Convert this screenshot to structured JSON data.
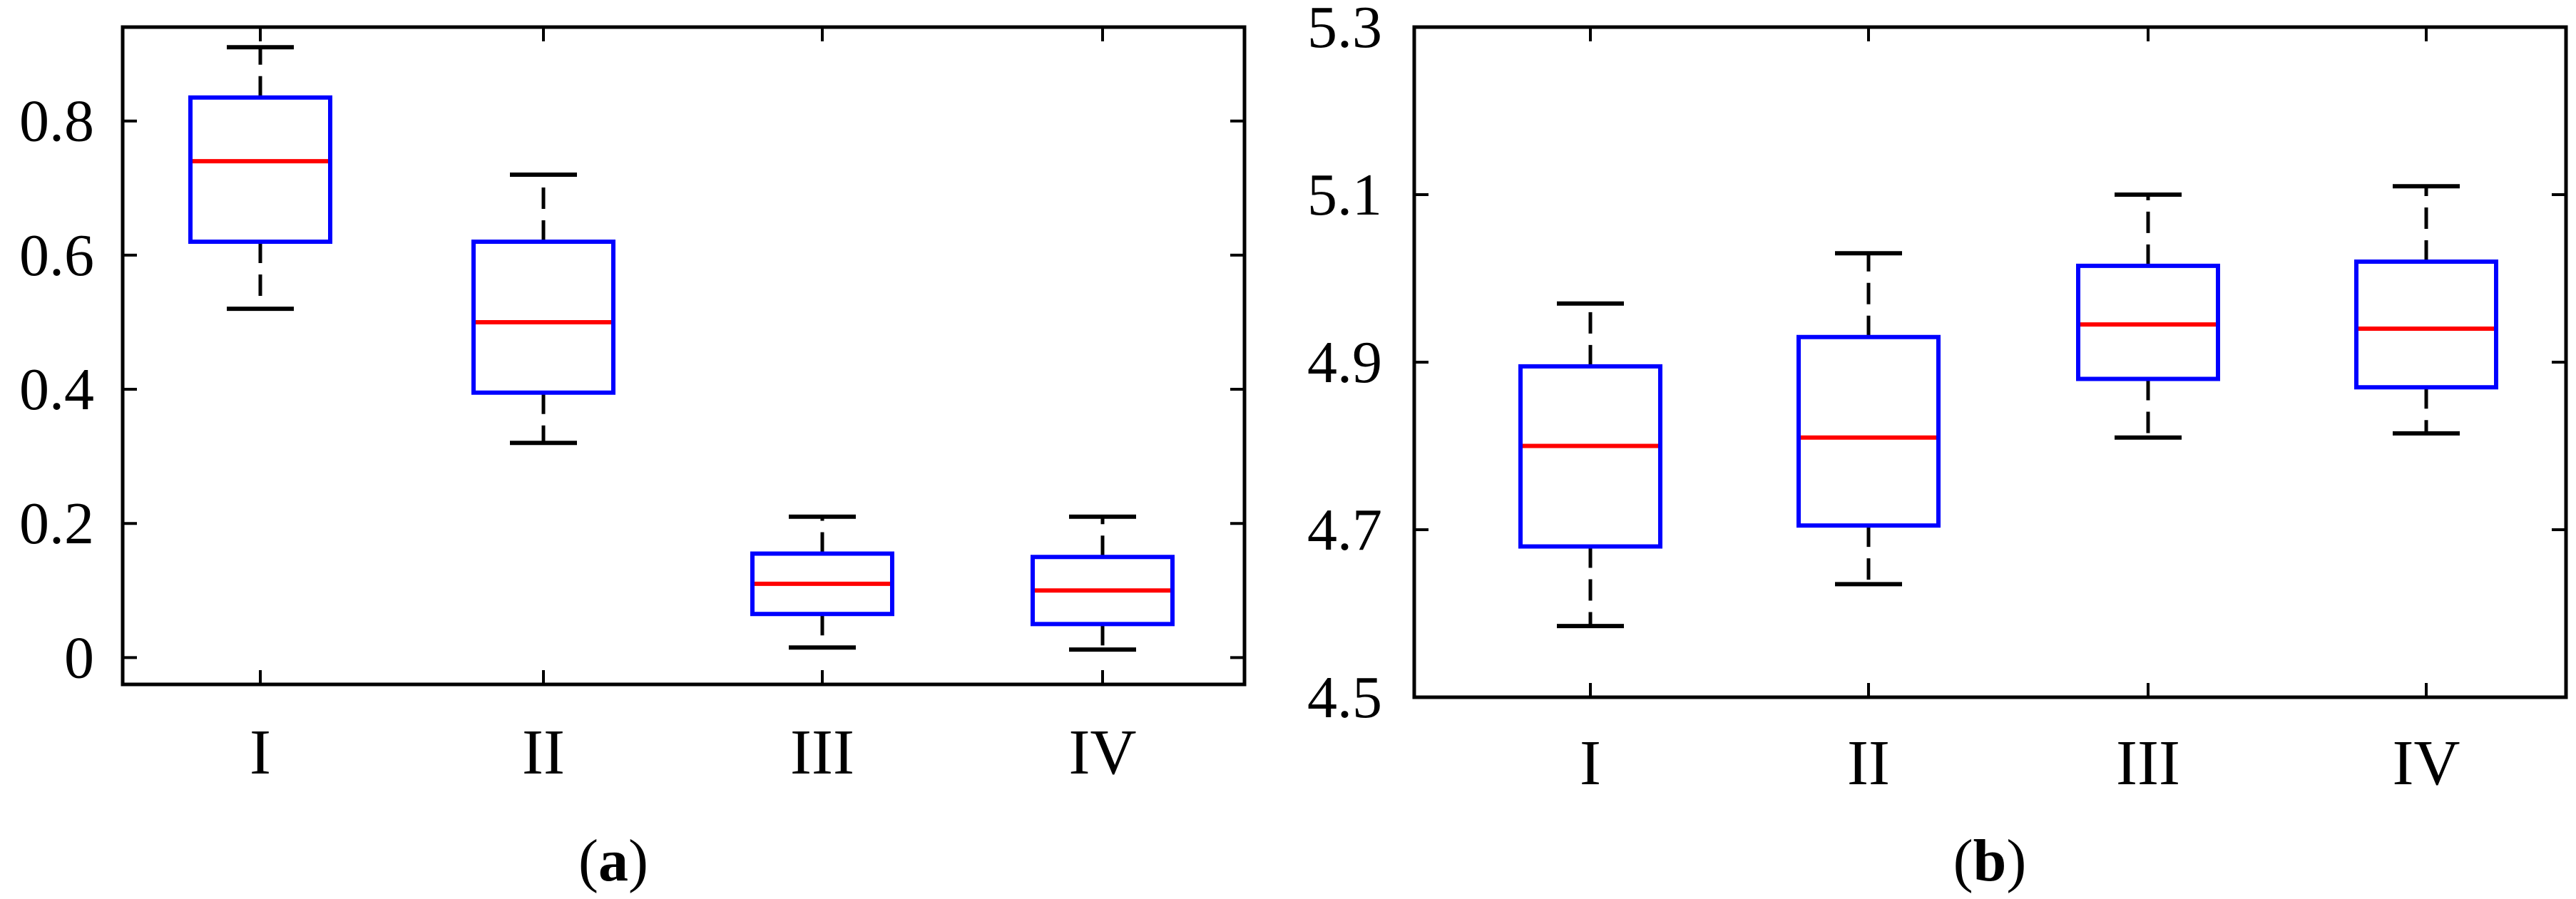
{
  "colors": {
    "box": "#0000ff",
    "median": "#ff0000",
    "whisker": "#000000",
    "axis": "#000000"
  },
  "chart_data": [
    {
      "type": "boxplot",
      "caption": "(a)",
      "caption_letter": "a",
      "categories": [
        "I",
        "II",
        "III",
        "IV"
      ],
      "ylim": [
        -0.04,
        0.94
      ],
      "yticks": [
        0,
        0.2,
        0.4,
        0.6,
        0.8
      ],
      "ytick_labels": [
        "0",
        "0.2",
        "0.4",
        "0.6",
        "0.8"
      ],
      "grid": false,
      "boxes": [
        {
          "category": "I",
          "whisker_low": 0.52,
          "q1": 0.62,
          "median": 0.74,
          "q3": 0.835,
          "whisker_high": 0.91
        },
        {
          "category": "II",
          "whisker_low": 0.32,
          "q1": 0.395,
          "median": 0.5,
          "q3": 0.62,
          "whisker_high": 0.72
        },
        {
          "category": "III",
          "whisker_low": 0.015,
          "q1": 0.065,
          "median": 0.11,
          "q3": 0.155,
          "whisker_high": 0.21
        },
        {
          "category": "IV",
          "whisker_low": 0.012,
          "q1": 0.05,
          "median": 0.1,
          "q3": 0.15,
          "whisker_high": 0.21
        }
      ]
    },
    {
      "type": "boxplot",
      "caption": "(b)",
      "caption_letter": "b",
      "categories": [
        "I",
        "II",
        "III",
        "IV"
      ],
      "ylim": [
        4.5,
        5.3
      ],
      "yticks": [
        4.5,
        4.7,
        4.9,
        5.1,
        5.3
      ],
      "ytick_labels": [
        "4.5",
        "4.7",
        "4.9",
        "5.1",
        "5.3"
      ],
      "grid": false,
      "boxes": [
        {
          "category": "I",
          "whisker_low": 4.585,
          "q1": 4.68,
          "median": 4.8,
          "q3": 4.895,
          "whisker_high": 4.97
        },
        {
          "category": "II",
          "whisker_low": 4.635,
          "q1": 4.705,
          "median": 4.81,
          "q3": 4.93,
          "whisker_high": 5.03
        },
        {
          "category": "III",
          "whisker_low": 4.81,
          "q1": 4.88,
          "median": 4.945,
          "q3": 5.015,
          "whisker_high": 5.1
        },
        {
          "category": "IV",
          "whisker_low": 4.815,
          "q1": 4.87,
          "median": 4.94,
          "q3": 5.02,
          "whisker_high": 5.11
        }
      ]
    }
  ]
}
